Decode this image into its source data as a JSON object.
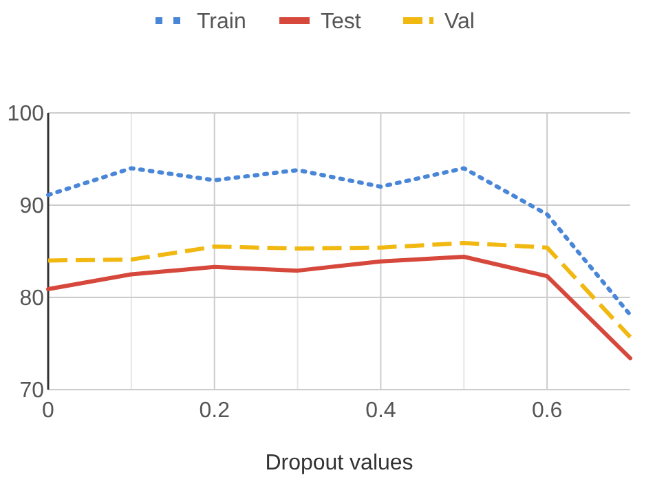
{
  "chart_data": {
    "type": "line",
    "xlabel": "Dropout values",
    "x": [
      0,
      0.1,
      0.2,
      0.3,
      0.4,
      0.5,
      0.6,
      0.7
    ],
    "series": [
      {
        "name": "Train",
        "color": "#4a86d8",
        "line_style": "dotted",
        "values": [
          91.1,
          94.0,
          92.7,
          93.8,
          92.0,
          94.0,
          89.0,
          78.1
        ]
      },
      {
        "name": "Test",
        "color": "#d6483c",
        "line_style": "solid",
        "values": [
          80.9,
          82.5,
          83.3,
          82.9,
          83.9,
          84.4,
          82.3,
          73.4
        ]
      },
      {
        "name": "Val",
        "color": "#f0b811",
        "line_style": "dashed",
        "values": [
          84.0,
          84.1,
          85.5,
          85.3,
          85.4,
          85.9,
          85.4,
          75.7
        ]
      }
    ],
    "xlim": [
      0,
      0.7
    ],
    "xticks": [
      0,
      {
        "value": 0.1,
        "label": null
      },
      0.2,
      {
        "value": 0.3,
        "label": null
      },
      0.4,
      {
        "value": 0.5,
        "label": null
      },
      0.6
    ],
    "ylim": [
      70,
      100
    ],
    "yticks": [
      70,
      80,
      90,
      100
    ],
    "grid": true,
    "legend": "top",
    "marker": "none"
  }
}
